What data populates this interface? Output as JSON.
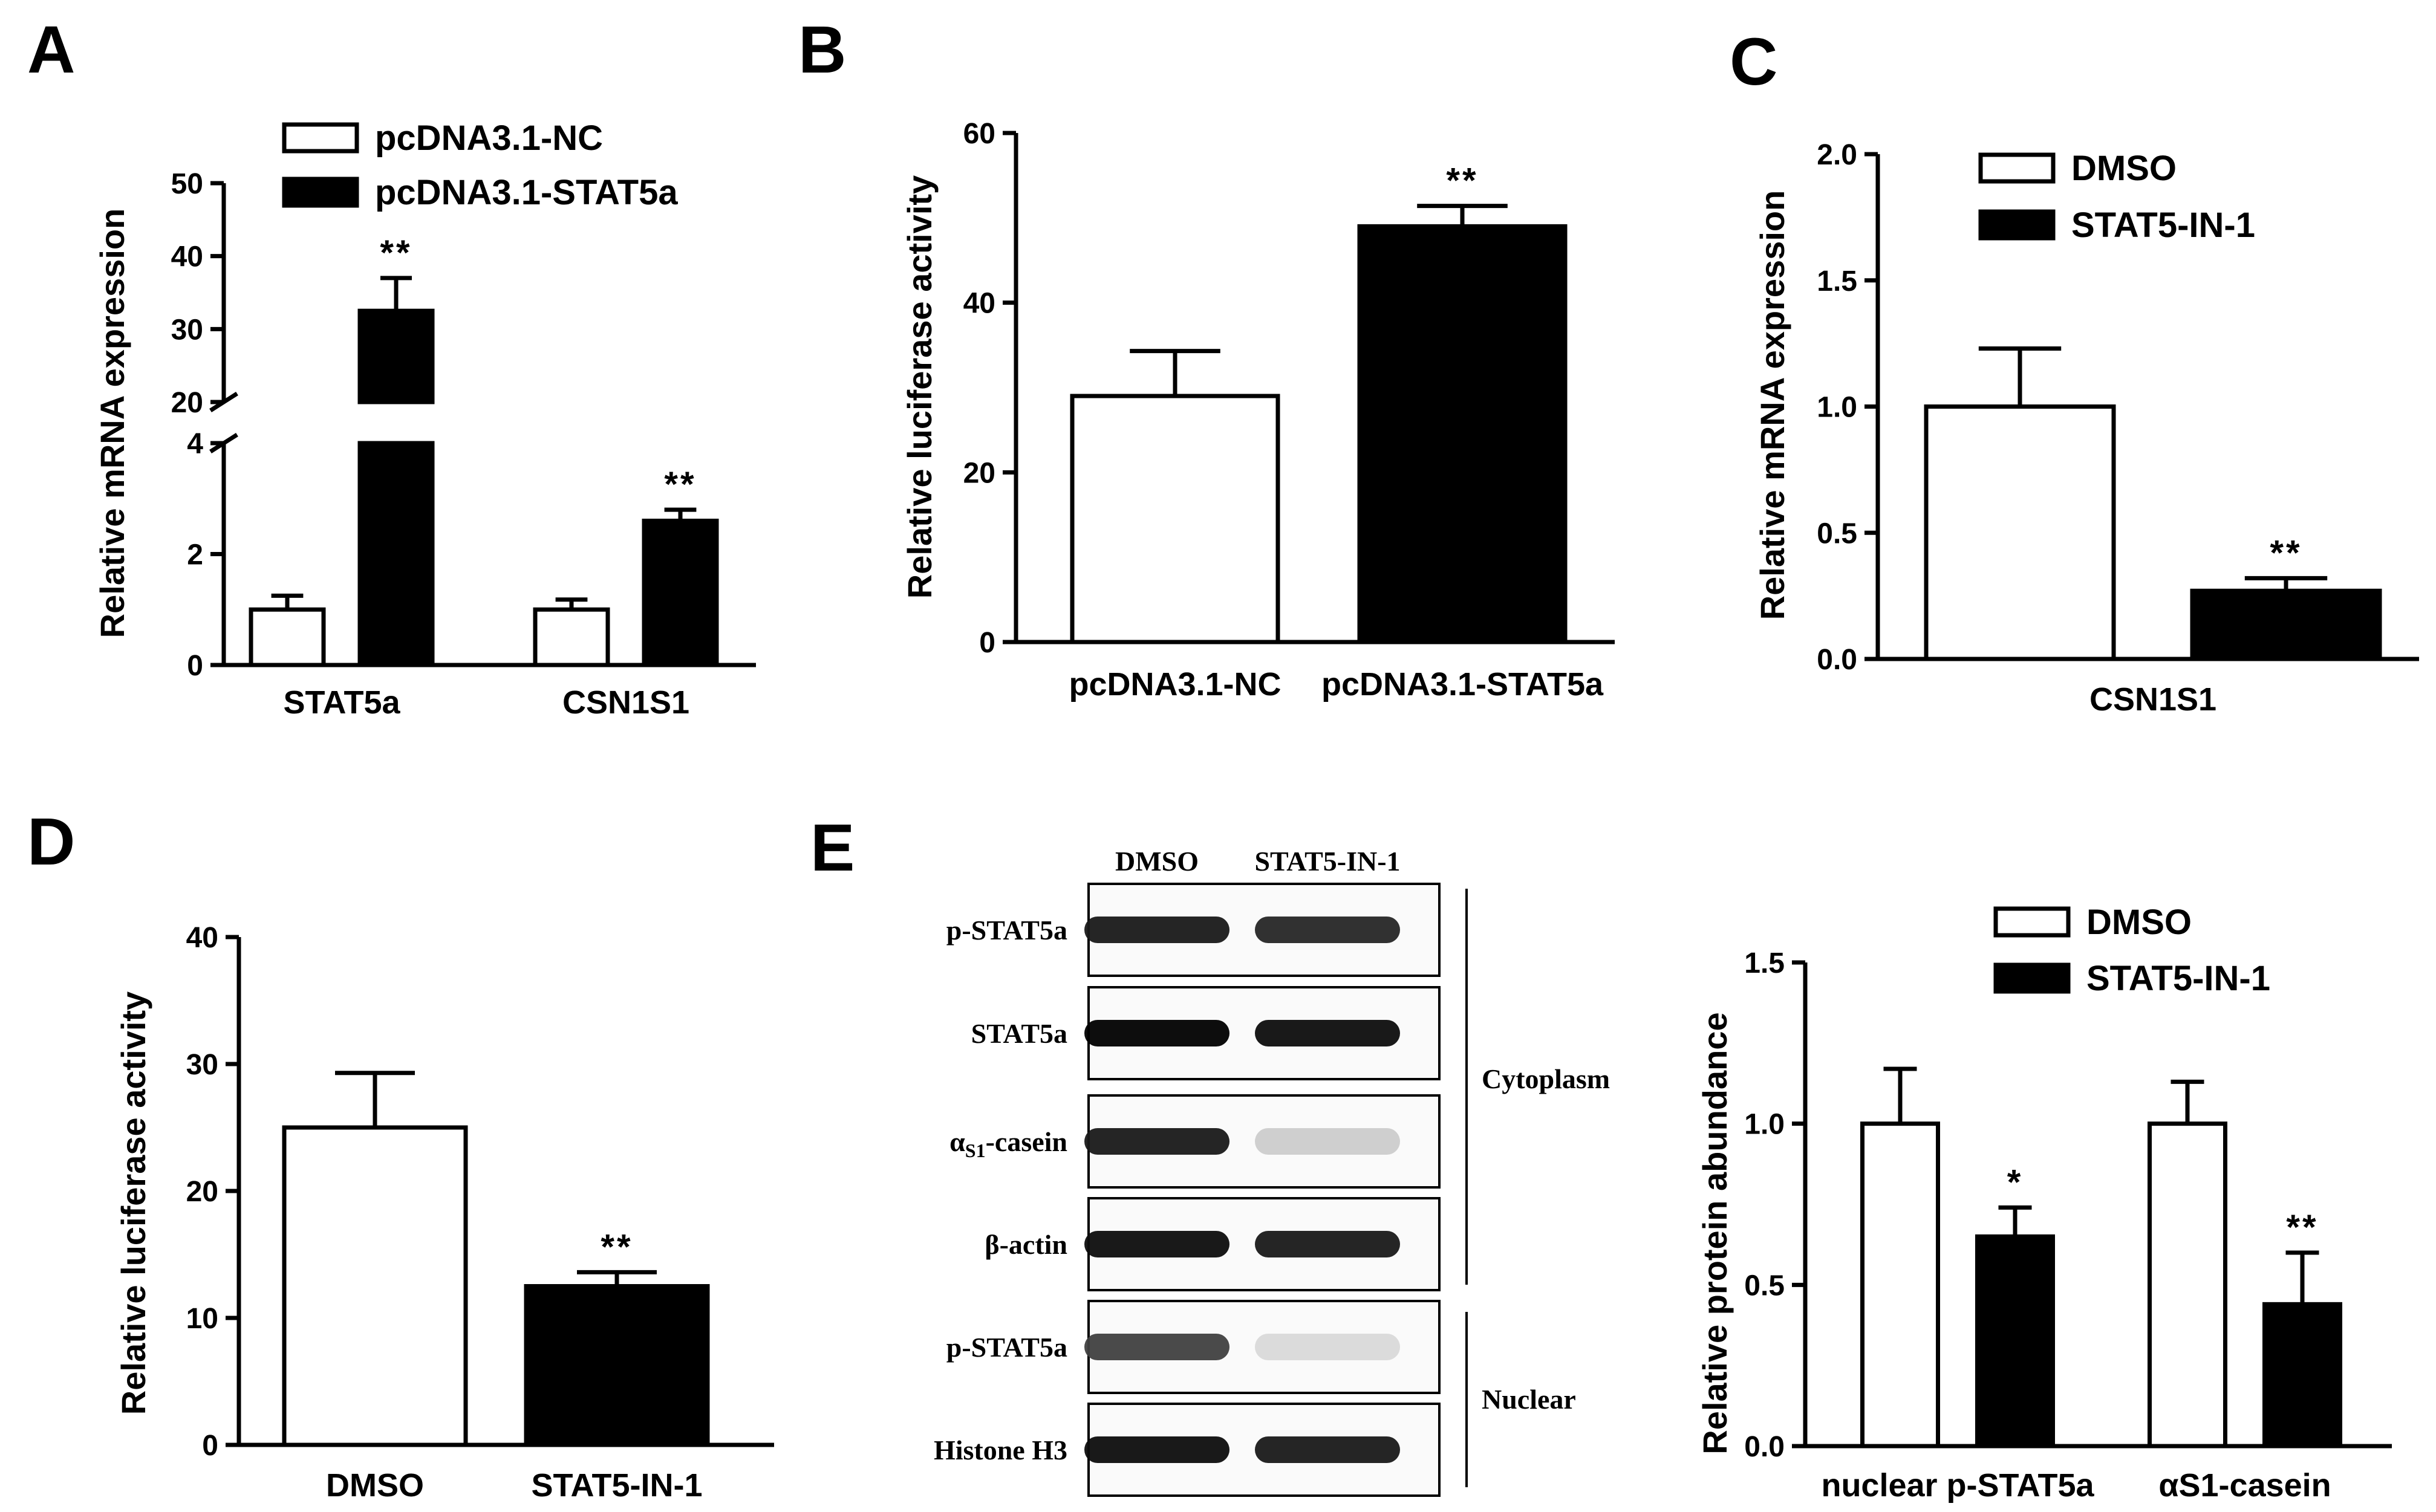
{
  "chart_data": [
    {
      "panel": "A",
      "type": "bar",
      "ylabel": "Relative mRNA expression",
      "categories": [
        "STAT5a",
        "CSN1S1"
      ],
      "series": [
        {
          "name": "pcDNA3.1-NC",
          "values": [
            1.0,
            1.0
          ],
          "errors": [
            0.25,
            0.18
          ],
          "color": "#ffffff"
        },
        {
          "name": "pcDNA3.1-STAT5a",
          "values": [
            32.5,
            2.6
          ],
          "errors": [
            4.5,
            0.2
          ],
          "color": "#000000"
        }
      ],
      "significance": [
        [
          "",
          "**"
        ],
        [
          "",
          "**"
        ]
      ],
      "ylim": [
        0,
        50
      ],
      "axis_break": {
        "lower": [
          0,
          4
        ],
        "upper": [
          20,
          50
        ]
      },
      "yticks_lower": [
        "0",
        "2",
        "4"
      ],
      "yticks_upper": [
        "20",
        "30",
        "40",
        "50"
      ],
      "legend": "top"
    },
    {
      "panel": "B",
      "type": "bar",
      "ylabel": "Relative luciferase activity",
      "categories": [
        "pcDNA3.1-NC",
        "pcDNA3.1-STAT5a"
      ],
      "values": [
        29,
        49
      ],
      "errors": [
        5.3,
        2.4
      ],
      "colors": [
        "#ffffff",
        "#000000"
      ],
      "significance": [
        "",
        "**"
      ],
      "ylim": [
        0,
        60
      ],
      "yticks": [
        "0",
        "20",
        "40",
        "60"
      ]
    },
    {
      "panel": "C",
      "type": "bar",
      "ylabel": "Relative mRNA expression",
      "categories": [
        "CSN1S1"
      ],
      "series": [
        {
          "name": "DMSO",
          "values": [
            1.0
          ],
          "errors": [
            0.23
          ],
          "color": "#ffffff"
        },
        {
          "name": "STAT5-IN-1",
          "values": [
            0.27
          ],
          "errors": [
            0.05
          ],
          "color": "#000000"
        }
      ],
      "significance": [
        [
          "",
          "**"
        ]
      ],
      "ylim": [
        0,
        2.0
      ],
      "yticks": [
        "0.0",
        "0.5",
        "1.0",
        "1.5",
        "2.0"
      ],
      "legend": "top"
    },
    {
      "panel": "D",
      "type": "bar",
      "ylabel": "Relative luciferase activity",
      "categories": [
        "DMSO",
        "STAT5-IN-1"
      ],
      "values": [
        25,
        12.5
      ],
      "errors": [
        4.3,
        1.1
      ],
      "colors": [
        "#ffffff",
        "#000000"
      ],
      "significance": [
        "",
        "**"
      ],
      "ylim": [
        0,
        40
      ],
      "yticks": [
        "0",
        "10",
        "20",
        "30",
        "40"
      ]
    },
    {
      "panel": "E",
      "type": "bar",
      "ylabel": "Relative protein abundance",
      "categories": [
        "nuclear p-STAT5a",
        "αS1-casein"
      ],
      "series": [
        {
          "name": "DMSO",
          "values": [
            1.0,
            1.0
          ],
          "errors": [
            0.17,
            0.13
          ],
          "color": "#ffffff"
        },
        {
          "name": "STAT5-IN-1",
          "values": [
            0.65,
            0.44
          ],
          "errors": [
            0.09,
            0.16
          ],
          "color": "#000000"
        }
      ],
      "significance": [
        [
          "",
          "*"
        ],
        [
          "",
          "**"
        ]
      ],
      "ylim": [
        0,
        1.5
      ],
      "yticks": [
        "0.0",
        "0.5",
        "1.0",
        "1.5"
      ],
      "legend": "top"
    }
  ],
  "panel_letters": [
    "A",
    "B",
    "C",
    "D",
    "E"
  ],
  "blot": {
    "lanes": [
      "DMSO",
      "STAT5-IN-1"
    ],
    "rows": [
      {
        "label": "p-STAT5a",
        "intensity": [
          0.9,
          0.85
        ]
      },
      {
        "label": "STAT5a",
        "intensity": [
          1.0,
          0.95
        ]
      },
      {
        "label_main": "α",
        "label_sub": "S1",
        "label_rest": "-casein",
        "intensity": [
          0.9,
          0.2
        ]
      },
      {
        "label": "β-actin",
        "intensity": [
          0.95,
          0.9
        ]
      },
      {
        "label": "p-STAT5a",
        "intensity": [
          0.75,
          0.15
        ]
      },
      {
        "label": "Histone H3",
        "intensity": [
          0.95,
          0.9
        ]
      }
    ],
    "groups": [
      "Cytoplasm",
      "Nuclear"
    ]
  },
  "colors": {
    "ink": "#000000",
    "paper": "#ffffff"
  }
}
